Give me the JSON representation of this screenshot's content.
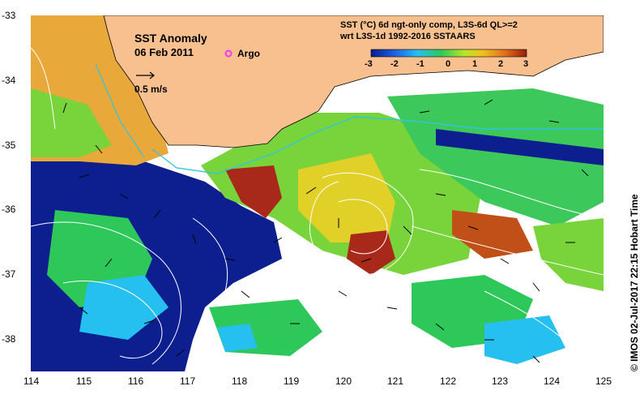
{
  "map": {
    "title": "SST Anomaly",
    "date": "06 Feb 2011",
    "argo_label": "Argo",
    "velocity_label": "0.5 m/s",
    "product_line1": "SST (°C) 6d ngt-only comp, L3S-6d QL>=2",
    "product_line2": "wrt L3S-1d 1992-2016 SSTAARS",
    "credit": "© IMOS 02-Jul-2017 22:15 Hobart Time"
  },
  "axes": {
    "lat_ticks": [
      "-33",
      "-34",
      "-35",
      "-36",
      "-37",
      "-38"
    ],
    "lon_ticks": [
      "114",
      "115",
      "116",
      "117",
      "118",
      "119",
      "120",
      "121",
      "122",
      "123",
      "124",
      "125"
    ]
  },
  "colorbar": {
    "min": -3,
    "max": 3,
    "ticks": [
      "-3",
      "-2",
      "-1",
      "0",
      "1",
      "2",
      "3"
    ],
    "colors": [
      "#0a1c8c",
      "#1f5fe0",
      "#26c0f0",
      "#2ec85a",
      "#b6e62a",
      "#f0c020",
      "#e07020",
      "#9a1c0a"
    ]
  },
  "colors": {
    "land": "#f7c08e",
    "ocean_missing": "#ffffff",
    "contour": "#ffffff",
    "coastline": "#31c6e0",
    "argo": "#ff33ff"
  }
}
